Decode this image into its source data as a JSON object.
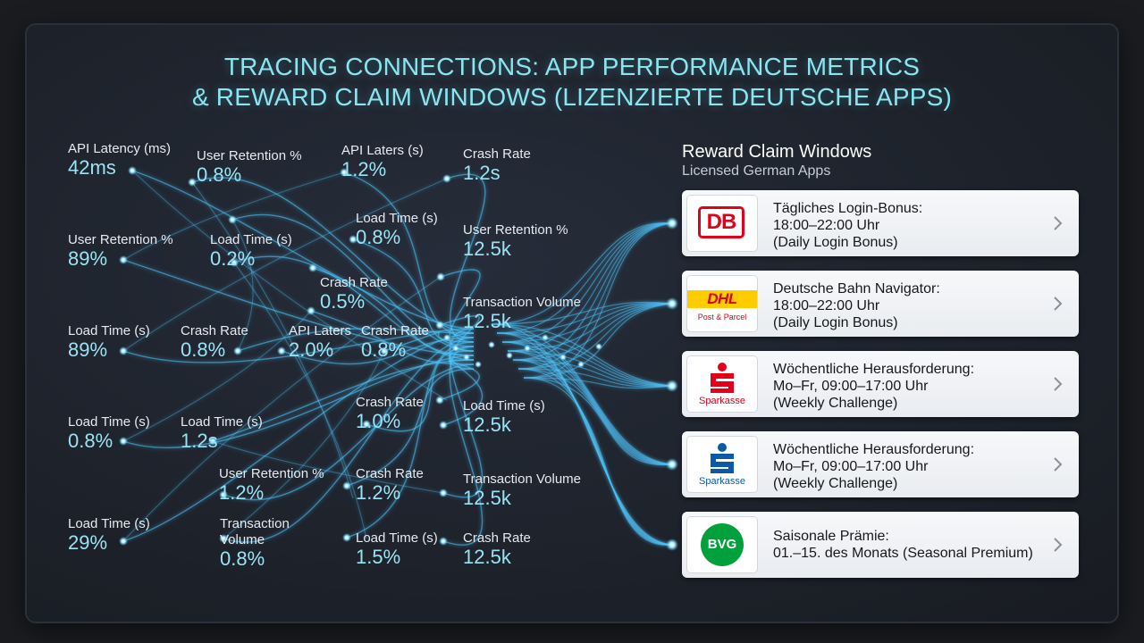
{
  "title_line1": "TRACING CONNECTIONS: APP PERFORMANCE METRICS",
  "title_line2": "& REWARD CLAIM WINDOWS (LIZENZIERTE DEUTSCHE APPS)",
  "metrics": [
    {
      "label": "API Latency (ms)",
      "value": "42ms"
    },
    {
      "label": "User Retention %",
      "value": "0.8%"
    },
    {
      "label": "API Laters (s)",
      "value": "1.2%"
    },
    {
      "label": "Crash Rate",
      "value": "1.2s"
    },
    {
      "label": "Load Time (s)",
      "value": "0.8%"
    },
    {
      "label": "User Retention %",
      "value": "12.5k"
    },
    {
      "label": "User Retention %",
      "value": "89%"
    },
    {
      "label": "Load Time (s)",
      "value": "0.2%"
    },
    {
      "label": "Crash Rate",
      "value": "0.5%"
    },
    {
      "label": "Transaction Volume",
      "value": "12.5k"
    },
    {
      "label": "Load Time (s)",
      "value": "89%"
    },
    {
      "label": "Crash Rate",
      "value": "0.8%"
    },
    {
      "label": "API Laters",
      "value": "2.0%"
    },
    {
      "label": "Crash Rate",
      "value": "0.8%"
    },
    {
      "label": "Crash Rate",
      "value": "1.0%"
    },
    {
      "label": "Load Time (s)",
      "value": "12.5k"
    },
    {
      "label": "Load Time (s)",
      "value": "0.8%"
    },
    {
      "label": "Load Time (s)",
      "value": "1.2s"
    },
    {
      "label": "User Retention %",
      "value": "1.2%"
    },
    {
      "label": "Crash Rate",
      "value": "1.2%"
    },
    {
      "label": "Transaction Volume",
      "value": "12.5k"
    },
    {
      "label": "Load Time (s)",
      "value": "29%"
    },
    {
      "label": "Transaction Volume",
      "value": "0.8%"
    },
    {
      "label": "Load Time (s)",
      "value": "1.5%"
    },
    {
      "label": "Crash Rate",
      "value": "12.5k"
    }
  ],
  "rewards": {
    "title": "Reward Claim Windows",
    "subtitle": "Licensed German Apps",
    "cards": [
      {
        "logo": "DB",
        "line1": "Tägliches Login-Bonus:",
        "line2": "18:00–22:00 Uhr",
        "line3": "(Daily Login Bonus)",
        "logo_icon": "db-logo-icon"
      },
      {
        "logo": "DHL",
        "logo_sub": "Post & Parcel",
        "line1": "Deutsche Bahn Navigator:",
        "line2": "18:00–22:00 Uhr",
        "line3": "(Daily Login Bonus)",
        "logo_icon": "dhl-logo-icon"
      },
      {
        "logo": "Sparkasse",
        "line1": "Wöchentliche Herausforderung:",
        "line2": "Mo–Fr, 09:00–17:00 Uhr",
        "line3": "(Weekly Challenge)",
        "logo_icon": "sparkasse-red-logo-icon"
      },
      {
        "logo": "Sparkasse",
        "line1": "Wöchentliche Herausforderung:",
        "line2": "Mo–Fr, 09:00–17:00 Uhr",
        "line3": "(Weekly Challenge)",
        "logo_icon": "sparkasse-blue-logo-icon"
      },
      {
        "logo": "BVG",
        "line1": "Saisonale Prämie:",
        "line2": "01.–15. des Monats (Seasonal Premium)",
        "logo_icon": "bvg-logo-icon"
      }
    ]
  },
  "colors": {
    "title": "#8be4ee",
    "value": "#9be3f4",
    "line": "#4fc8ff",
    "db_red": "#e2001a",
    "dhl_yellow": "#ffcc00",
    "dhl_red": "#d40511",
    "sparkasse_red": "#e2001a",
    "sparkasse_blue": "#0a5aa8",
    "bvg_green": "#00a03c"
  }
}
